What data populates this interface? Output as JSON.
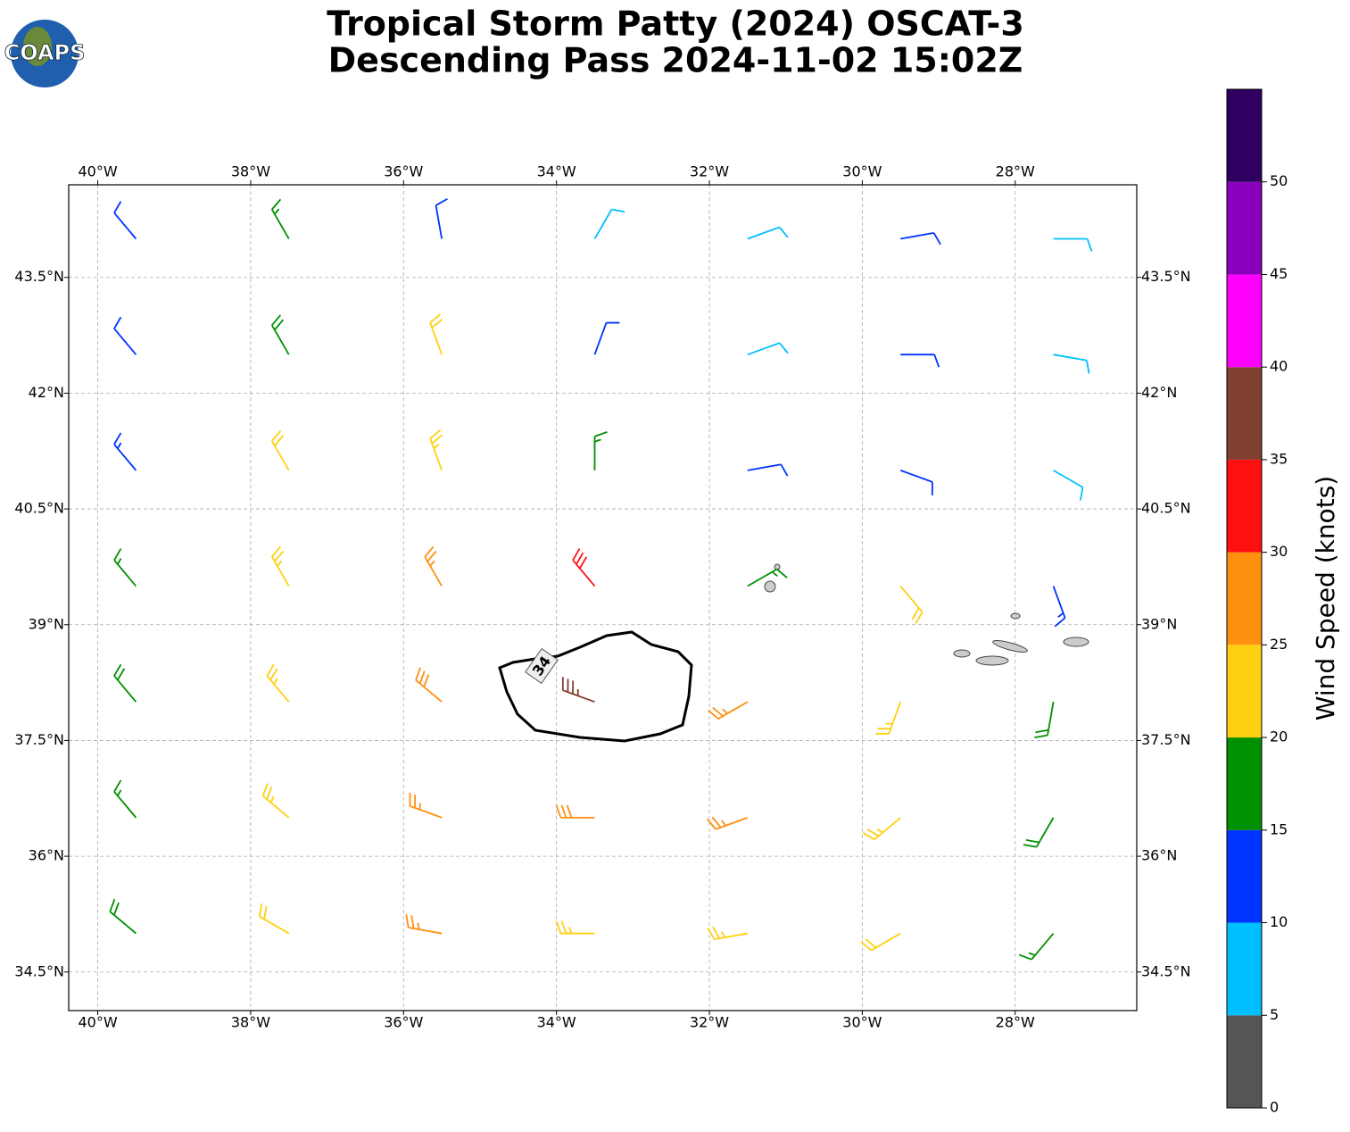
{
  "chart_data": {
    "type": "barb",
    "title": [
      "Tropical Storm Patty (2024) OSCAT-3",
      "Descending Pass 2024-11-02 15:02Z"
    ],
    "logo": "COAPS",
    "xlim": [
      -40.38,
      -26.41
    ],
    "ylim": [
      34.0,
      44.7
    ],
    "xticks": [
      {
        "value": -40,
        "label": "40°W"
      },
      {
        "value": -38,
        "label": "38°W"
      },
      {
        "value": -36,
        "label": "36°W"
      },
      {
        "value": -34,
        "label": "34°W"
      },
      {
        "value": -32,
        "label": "32°W"
      },
      {
        "value": -30,
        "label": "30°W"
      },
      {
        "value": -28,
        "label": "28°W"
      }
    ],
    "yticks": [
      {
        "value": 34.5,
        "label": "34.5°N"
      },
      {
        "value": 36,
        "label": "36°N"
      },
      {
        "value": 37.5,
        "label": "37.5°N"
      },
      {
        "value": 39,
        "label": "39°N"
      },
      {
        "value": 40.5,
        "label": "40.5°N"
      },
      {
        "value": 42,
        "label": "42°N"
      },
      {
        "value": 43.5,
        "label": "43.5°N"
      }
    ],
    "grid": true,
    "contour": {
      "level": 34
    },
    "colorbar": {
      "label": "Wind Speed (knots)",
      "bounds": [
        0,
        5,
        10,
        15,
        20,
        25,
        30,
        35,
        40,
        45,
        50,
        55
      ],
      "colors": [
        "#555555",
        "#00bfff",
        "#0033ff",
        "#009000",
        "#ffd010",
        "#ff9010",
        "#ff1010",
        "#804030",
        "#ff00ff",
        "#8800bb",
        "#300060"
      ],
      "ticks": [
        0,
        5,
        10,
        15,
        20,
        25,
        30,
        35,
        40,
        45,
        50
      ]
    },
    "barbs": {
      "lon": [
        -39.5,
        -37.5,
        -35.5,
        -33.5,
        -31.5,
        -29.5,
        -27.5
      ],
      "lat": [
        44,
        42.5,
        41,
        39.5,
        38,
        36.5,
        35
      ],
      "speed": [
        [
          12,
          17,
          12,
          8,
          8,
          12,
          8
        ],
        [
          12,
          18,
          22,
          12,
          9,
          12,
          9
        ],
        [
          13,
          22,
          24,
          17,
          12,
          11,
          9
        ],
        [
          17,
          23,
          27,
          32,
          16,
          21,
          13
        ],
        [
          18,
          24,
          28,
          37,
          27,
          23,
          18
        ],
        [
          17,
          23,
          27,
          28,
          27,
          24,
          18
        ],
        [
          18,
          22,
          26,
          24,
          23,
          22,
          17
        ]
      ],
      "direction": [
        [
          320,
          330,
          350,
          30,
          70,
          80,
          90
        ],
        [
          320,
          330,
          340,
          20,
          70,
          90,
          100
        ],
        [
          320,
          330,
          340,
          0,
          80,
          110,
          120
        ],
        [
          320,
          330,
          330,
          320,
          60,
          140,
          160
        ],
        [
          320,
          320,
          310,
          290,
          240,
          200,
          190
        ],
        [
          320,
          310,
          290,
          270,
          250,
          230,
          210
        ],
        [
          310,
          300,
          280,
          270,
          260,
          240,
          220
        ]
      ]
    }
  }
}
